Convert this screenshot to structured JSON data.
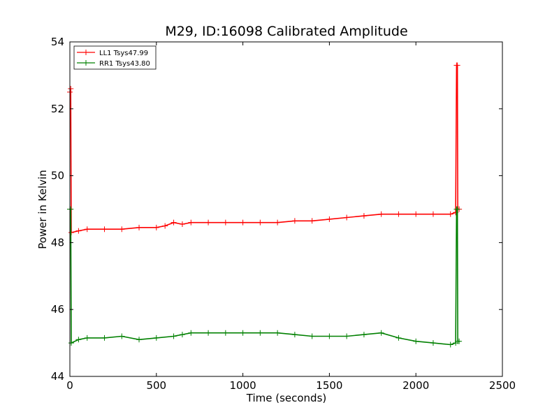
{
  "chart_data": {
    "type": "line",
    "title": "M29, ID:16098 Calibrated Amplitude",
    "xlabel": "Time (seconds)",
    "ylabel": "Power in Kelvin",
    "xlim": [
      0,
      2500
    ],
    "ylim": [
      44,
      54
    ],
    "xticks": [
      0,
      500,
      1000,
      1500,
      2000,
      2500
    ],
    "yticks": [
      44,
      46,
      48,
      50,
      52,
      54
    ],
    "grid": false,
    "legend_position": "top-left",
    "marker": "+",
    "series": [
      {
        "name": "LL1 Tsys47.99",
        "color": "#ff0000",
        "points": [
          [
            0,
            52.5
          ],
          [
            5,
            52.6
          ],
          [
            8,
            48.3
          ],
          [
            50,
            48.35
          ],
          [
            100,
            48.4
          ],
          [
            200,
            48.4
          ],
          [
            300,
            48.4
          ],
          [
            400,
            48.45
          ],
          [
            500,
            48.45
          ],
          [
            550,
            48.5
          ],
          [
            600,
            48.6
          ],
          [
            650,
            48.55
          ],
          [
            700,
            48.6
          ],
          [
            800,
            48.6
          ],
          [
            900,
            48.6
          ],
          [
            1000,
            48.6
          ],
          [
            1100,
            48.6
          ],
          [
            1200,
            48.6
          ],
          [
            1300,
            48.65
          ],
          [
            1400,
            48.65
          ],
          [
            1500,
            48.7
          ],
          [
            1600,
            48.75
          ],
          [
            1700,
            48.8
          ],
          [
            1800,
            48.85
          ],
          [
            1900,
            48.85
          ],
          [
            2000,
            48.85
          ],
          [
            2100,
            48.85
          ],
          [
            2200,
            48.85
          ],
          [
            2230,
            48.9
          ],
          [
            2235,
            53.3
          ],
          [
            2240,
            53.3
          ],
          [
            2242,
            49.0
          ],
          [
            2250,
            49.0
          ]
        ]
      },
      {
        "name": "RR1 Tsys43.80",
        "color": "#008000",
        "points": [
          [
            0,
            49.0
          ],
          [
            5,
            49.0
          ],
          [
            8,
            45.0
          ],
          [
            50,
            45.1
          ],
          [
            100,
            45.15
          ],
          [
            200,
            45.15
          ],
          [
            300,
            45.2
          ],
          [
            400,
            45.1
          ],
          [
            500,
            45.15
          ],
          [
            600,
            45.2
          ],
          [
            650,
            45.25
          ],
          [
            700,
            45.3
          ],
          [
            800,
            45.3
          ],
          [
            900,
            45.3
          ],
          [
            1000,
            45.3
          ],
          [
            1100,
            45.3
          ],
          [
            1200,
            45.3
          ],
          [
            1300,
            45.25
          ],
          [
            1400,
            45.2
          ],
          [
            1500,
            45.2
          ],
          [
            1600,
            45.2
          ],
          [
            1700,
            45.25
          ],
          [
            1800,
            45.3
          ],
          [
            1900,
            45.15
          ],
          [
            2000,
            45.05
          ],
          [
            2100,
            45.0
          ],
          [
            2200,
            44.95
          ],
          [
            2230,
            45.0
          ],
          [
            2235,
            49.0
          ],
          [
            2240,
            49.0
          ],
          [
            2242,
            45.05
          ],
          [
            2250,
            45.05
          ]
        ]
      }
    ]
  }
}
